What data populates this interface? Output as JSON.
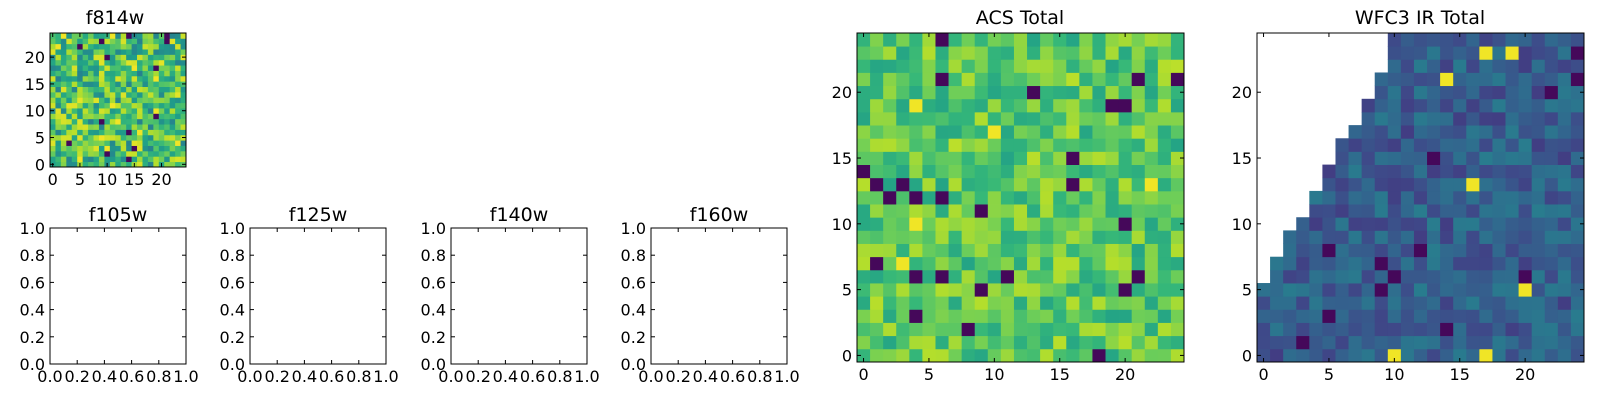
{
  "figure": {
    "background": "#ffffff"
  },
  "colormap": {
    "name": "viridis",
    "low": "#440154",
    "mid": "#21908d",
    "high": "#fde725"
  },
  "chart_data": [
    {
      "id": "f814w",
      "type": "heatmap",
      "title": "f814w",
      "xlabel": "",
      "ylabel": "",
      "grid_size": [
        25,
        25
      ],
      "xlim": [
        -0.5,
        24.5
      ],
      "ylim": [
        -0.5,
        24.5
      ],
      "xticks": [
        0,
        5,
        10,
        15,
        20
      ],
      "yticks": [
        0,
        5,
        10,
        15,
        20
      ],
      "value_range": [
        0,
        1
      ],
      "typical_level": 0.7,
      "spread": 0.26,
      "dark_fraction": 0.03,
      "empty_region": "none"
    },
    {
      "id": "f105w",
      "type": "empty",
      "title": "f105w",
      "xlim": [
        0,
        1
      ],
      "ylim": [
        0,
        1
      ],
      "xticks": [
        "0.0",
        "0.2",
        "0.4",
        "0.6",
        "0.8",
        "1.0"
      ],
      "yticks": [
        "0.0",
        "0.2",
        "0.4",
        "0.6",
        "0.8",
        "1.0"
      ]
    },
    {
      "id": "f125w",
      "type": "empty",
      "title": "f125w",
      "xlim": [
        0,
        1
      ],
      "ylim": [
        0,
        1
      ],
      "xticks": [
        "0.0",
        "0.2",
        "0.4",
        "0.6",
        "0.8",
        "1.0"
      ],
      "yticks": [
        "0.0",
        "0.2",
        "0.4",
        "0.6",
        "0.8",
        "1.0"
      ]
    },
    {
      "id": "f140w",
      "type": "empty",
      "title": "f140w",
      "xlim": [
        0,
        1
      ],
      "ylim": [
        0,
        1
      ],
      "xticks": [
        "0.0",
        "0.2",
        "0.4",
        "0.6",
        "0.8",
        "1.0"
      ],
      "yticks": [
        "0.0",
        "0.2",
        "0.4",
        "0.6",
        "0.8",
        "1.0"
      ]
    },
    {
      "id": "f160w",
      "type": "empty",
      "title": "f160w",
      "xlim": [
        0,
        1
      ],
      "ylim": [
        0,
        1
      ],
      "xticks": [
        "0.0",
        "0.2",
        "0.4",
        "0.6",
        "0.8",
        "1.0"
      ],
      "yticks": [
        "0.0",
        "0.2",
        "0.4",
        "0.6",
        "0.8",
        "1.0"
      ]
    },
    {
      "id": "acs_total",
      "type": "heatmap",
      "title": "ACS Total",
      "xlabel": "",
      "ylabel": "",
      "grid_size": [
        25,
        25
      ],
      "xlim": [
        -0.5,
        24.5
      ],
      "ylim": [
        -0.5,
        24.5
      ],
      "xticks": [
        0,
        5,
        10,
        15,
        20
      ],
      "yticks": [
        0,
        5,
        10,
        15,
        20
      ],
      "value_range": [
        0,
        1
      ],
      "typical_level": 0.74,
      "spread": 0.16,
      "dark_fraction": 0.025,
      "empty_region": "none"
    },
    {
      "id": "wfc3_ir_total",
      "type": "heatmap",
      "title": "WFC3 IR Total",
      "xlabel": "",
      "ylabel": "",
      "grid_size": [
        25,
        25
      ],
      "xlim": [
        -0.5,
        24.5
      ],
      "ylim": [
        -0.5,
        24.5
      ],
      "xticks": [
        0,
        5,
        10,
        15,
        20
      ],
      "yticks": [
        0,
        5,
        10,
        15,
        20
      ],
      "value_range": [
        0,
        1
      ],
      "typical_level": 0.3,
      "spread": 0.12,
      "dark_fraction": 0.02,
      "empty_region": "top-left"
    }
  ]
}
